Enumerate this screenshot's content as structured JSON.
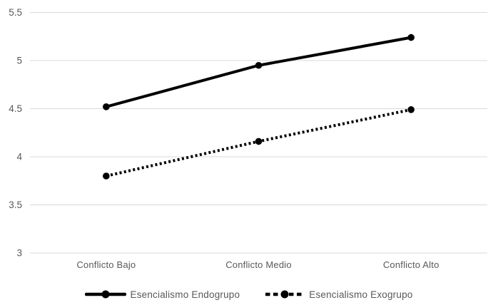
{
  "chart_data": {
    "type": "line",
    "title": "",
    "xlabel": "",
    "ylabel": "",
    "categories": [
      "Conflicto Bajo",
      "Conflicto Medio",
      "Conflicto Alto"
    ],
    "series": [
      {
        "name": "Esencialismo Endogrupo",
        "values": [
          4.52,
          4.95,
          5.24
        ],
        "line_style": "solid",
        "marker": "circle",
        "color": "#000000"
      },
      {
        "name": "Esencialismo Exogrupo",
        "values": [
          3.8,
          4.16,
          4.49
        ],
        "line_style": "dotted",
        "marker": "circle",
        "color": "#000000"
      }
    ],
    "ylim": [
      3,
      5.5
    ],
    "ytick_step": 0.5,
    "ytick_labels": [
      "5.5",
      "5",
      "4.5",
      "4",
      "3.5",
      "3"
    ],
    "grid": true,
    "gridline_color": "#d9d9d9",
    "text_color": "#595959",
    "legend_position": "bottom"
  }
}
